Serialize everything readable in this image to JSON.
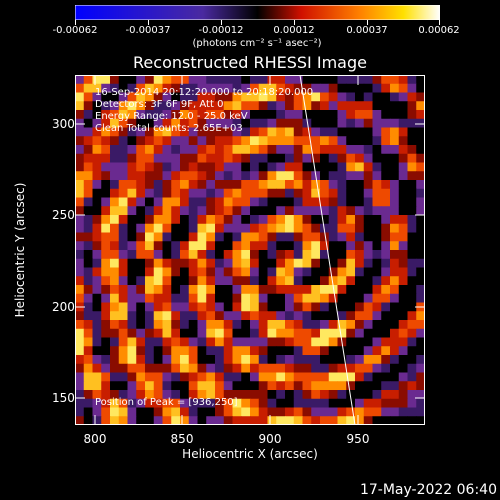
{
  "colorbar": {
    "ticks": [
      "-0.00062",
      "-0.00037",
      "-0.00012",
      "0.00012",
      "0.00037",
      "0.00062"
    ],
    "units": "(photons cm⁻² s⁻¹ asec⁻²)"
  },
  "title": "Reconstructed RHESSI Image",
  "info": {
    "line1": "16-Sep-2014 20:12:20.000 to 20:18:20.000",
    "line2": "Detectors: 3F 6F 9F, Att 0",
    "line3": "Energy Range: 12.0 - 25.0 keV",
    "line4": "Clean     Total counts: 2.65E+03"
  },
  "peak_label": "Position of Peak = [936,250]",
  "axes": {
    "xlabel": "Heliocentric X (arcsec)",
    "ylabel": "Heliocentric Y (arcsec)",
    "xticks": [
      "800",
      "850",
      "900",
      "950"
    ],
    "yticks": [
      "300",
      "250",
      "200",
      "150"
    ]
  },
  "datestamp": "17-May-2022 06:40",
  "colors": {
    "background": "#000000",
    "foreground": "#ffffff",
    "low": "#5a2a8a",
    "mid": "#c81e00",
    "high": "#ffd700"
  }
}
